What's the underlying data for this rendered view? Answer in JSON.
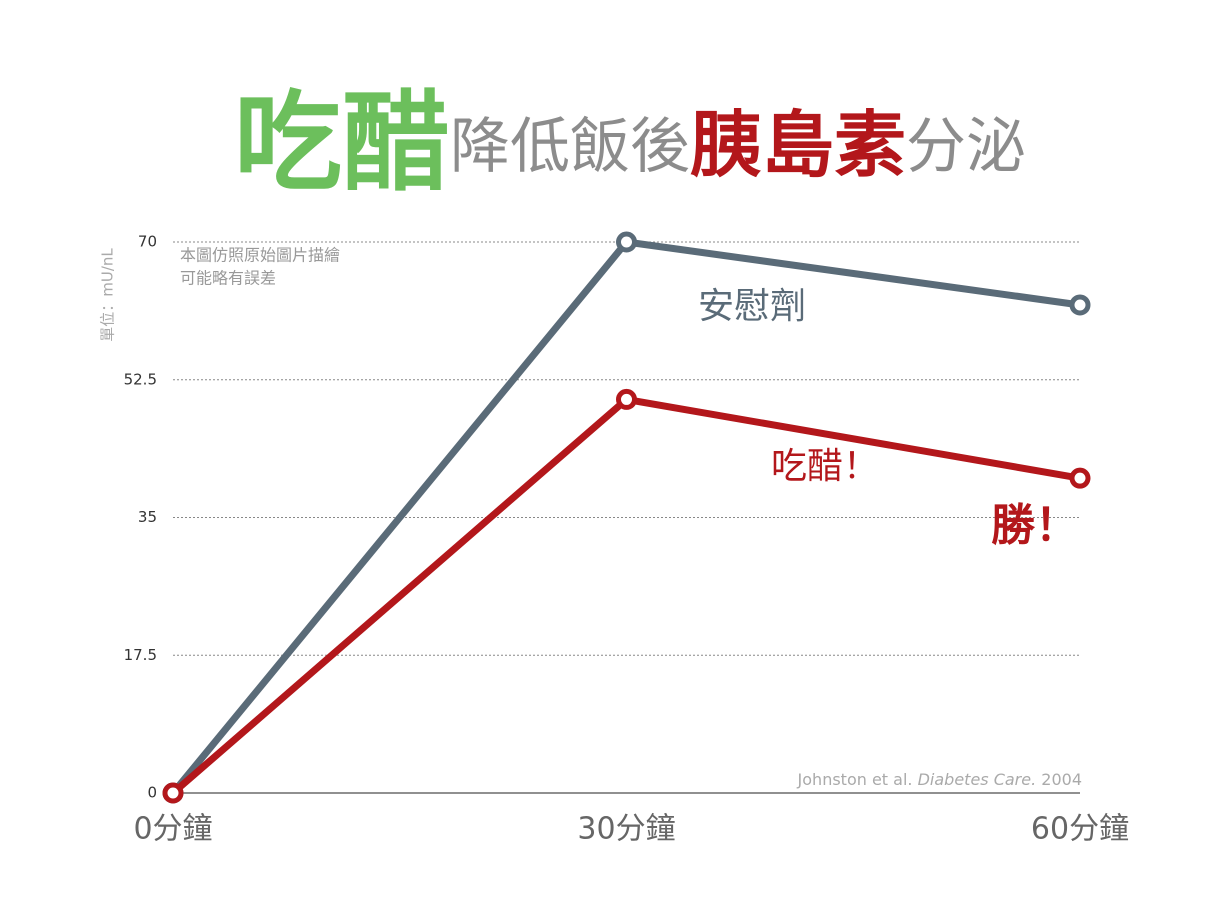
{
  "chart_data": {
    "type": "line",
    "title": [
      {
        "text": "吃醋",
        "color": "#6cbf5c"
      },
      {
        "text": "降低飯後",
        "color": "#8c8c8c"
      },
      {
        "text": "胰島素",
        "color": "#b3171b"
      },
      {
        "text": "分泌",
        "color": "#8c8c8c"
      }
    ],
    "y_label": "單位：mU/nL",
    "note": [
      "本圖仿照原始圖片描繪",
      "可能略有誤差"
    ],
    "categories": [
      "0分鐘",
      "30分鐘",
      "60分鐘"
    ],
    "series": [
      {
        "name": "安慰劑",
        "color": "#5a6b78",
        "values": [
          0,
          70,
          62
        ]
      },
      {
        "name": "吃醋！",
        "color": "#b3171b",
        "values": [
          0,
          50,
          40
        ]
      }
    ],
    "annotation": "勝！",
    "source": [
      "Johnston et al. ",
      "Diabetes Care.",
      " 2004"
    ],
    "ylim": [
      0,
      70
    ],
    "yticks": [
      0,
      17.5,
      35,
      52.5,
      70
    ],
    "grid": true
  }
}
